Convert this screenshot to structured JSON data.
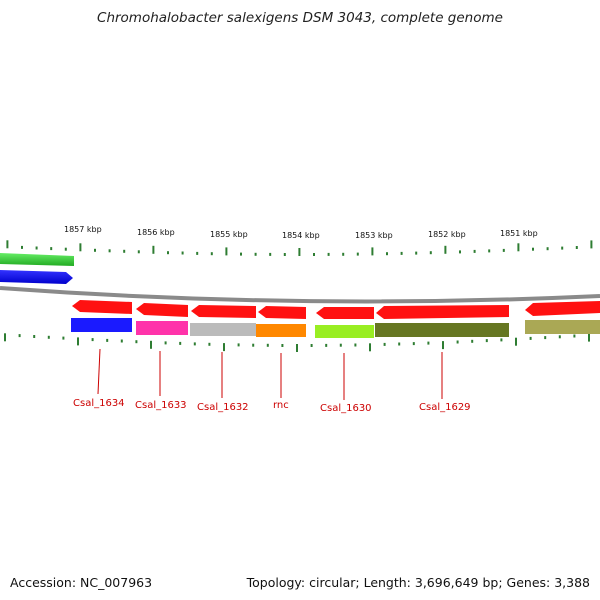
{
  "title": "Chromohalobacter salexigens DSM 3043, complete genome",
  "footer": {
    "accession": "Accession: NC_007963",
    "topology": "Topology: circular; Length: 3,696,649 bp; Genes: 3,388"
  },
  "scale": {
    "ticks": [
      "1857 kbp",
      "1856 kbp",
      "1855 kbp",
      "1854 kbp",
      "1853 kbp",
      "1852 kbp",
      "1851 kbp"
    ]
  },
  "colors": {
    "backbone": "#888888",
    "tick": "#2e7d32",
    "label": "#cc0000",
    "forward_gene": "#ff1111"
  },
  "gene_labels": [
    {
      "name": "Csal_1634"
    },
    {
      "name": "Csal_1633"
    },
    {
      "name": "Csal_1632"
    },
    {
      "name": "rnc"
    },
    {
      "name": "Csal_1630"
    },
    {
      "name": "Csal_1629"
    }
  ],
  "cog_track": [
    {
      "label": "Csal_1634",
      "color": "#1a1aff"
    },
    {
      "label": "Csal_1633",
      "color": "#ff33aa"
    },
    {
      "label": "Csal_1632",
      "color": "#bbbbbb"
    },
    {
      "label": "rnc",
      "color": "#ff8800"
    },
    {
      "label": "Csal_1630",
      "color": "#99ee22"
    },
    {
      "label": "Csal_1629",
      "color": "#667722"
    },
    {
      "label": "",
      "color": "#aaa855"
    }
  ]
}
